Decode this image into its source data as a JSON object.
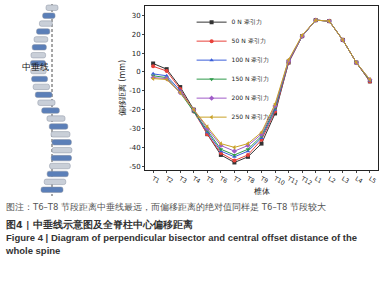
{
  "chart_data": {
    "type": "line",
    "xlabel": "椎体",
    "ylabel": "偏移距离 (mm)",
    "categories": [
      "T1",
      "T2",
      "T3",
      "T4",
      "T5",
      "T6",
      "T7",
      "T8",
      "T9",
      "T10",
      "T11",
      "T12",
      "L1",
      "L2",
      "L3",
      "L4",
      "L5"
    ],
    "series": [
      {
        "name": "0 N 牵引力",
        "color": "#333333",
        "marker": "square",
        "values": [
          4.5,
          1.5,
          -8,
          -20,
          -33,
          -44,
          -48,
          -45,
          -38,
          -22,
          5,
          19,
          27.5,
          27,
          17,
          5,
          -5
        ]
      },
      {
        "name": "50 N 牵引力",
        "color": "#e8413a",
        "marker": "circle",
        "values": [
          3,
          0.5,
          -9,
          -21,
          -33,
          -43,
          -47,
          -44,
          -36,
          -21,
          5,
          19,
          27.5,
          27,
          17,
          5,
          -5
        ]
      },
      {
        "name": "100 N 牵引力",
        "color": "#3b5fd9",
        "marker": "triangle-up",
        "values": [
          -1,
          -2,
          -10,
          -21,
          -32,
          -42,
          -45,
          -42,
          -35,
          -20,
          5.5,
          19,
          27.5,
          27,
          17,
          5,
          -4.5
        ]
      },
      {
        "name": "150 N 牵引力",
        "color": "#2e9a4a",
        "marker": "triangle-down",
        "values": [
          -2,
          -3,
          -11,
          -21,
          -31,
          -41,
          -44,
          -41,
          -34,
          -19,
          6,
          19,
          27.5,
          27,
          17,
          5,
          -4.5
        ]
      },
      {
        "name": "200 N 牵引力",
        "color": "#a05cc8",
        "marker": "diamond",
        "values": [
          -3,
          -3.5,
          -11,
          -20,
          -30,
          -39,
          -42,
          -39,
          -33,
          -18,
          6,
          19,
          27.5,
          27,
          17,
          5,
          -4
        ]
      },
      {
        "name": "250 N 牵引力",
        "color": "#c9a227",
        "marker": "triangle-left",
        "values": [
          -3.5,
          -4,
          -11,
          -20,
          -29,
          -38,
          -40,
          -38,
          -32,
          -17,
          6.5,
          19.5,
          27.5,
          27,
          17,
          5,
          -4
        ]
      }
    ],
    "ylim": [
      -52,
      35
    ],
    "yticks": [
      -50,
      -40,
      -30,
      -20,
      -10,
      0,
      10,
      20,
      30
    ],
    "grid": false,
    "legend": "top left"
  },
  "diagram": {
    "label": "中垂线"
  },
  "caption": {
    "note": "图注：T6–T8 节段距离中垂线最远，而偏移距离的绝对值同样是 T6–T8 节段较大",
    "figure_cn": "图4 | 中垂线示意图及全脊柱中心偏移距离",
    "figure_en": "Figure 4 | Diagram of perpendicular bisector and central offset distance of the whole spine"
  }
}
